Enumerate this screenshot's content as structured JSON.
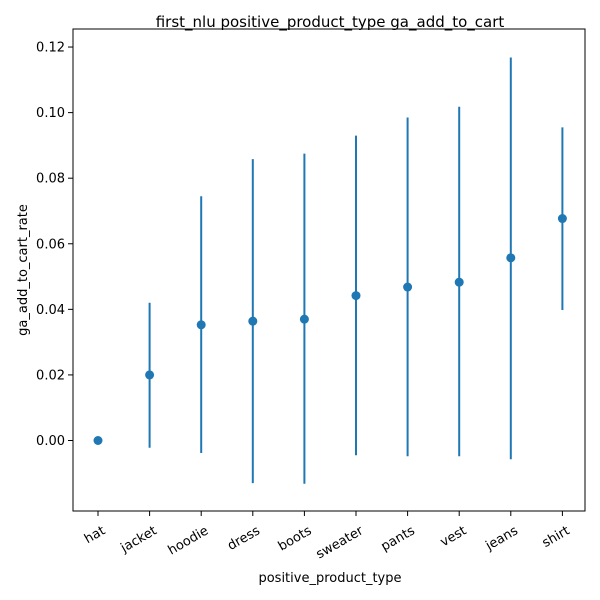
{
  "chart_data": {
    "type": "scatter",
    "title": "first_nlu positive_product_type ga_add_to_cart",
    "xlabel": "positive_product_type",
    "ylabel": "ga_add_to_cart_rate",
    "categories": [
      "hat",
      "jacket",
      "hoodie",
      "dress",
      "boots",
      "sweater",
      "pants",
      "vest",
      "jeans",
      "shirt"
    ],
    "values": [
      0.0,
      0.02,
      0.0353,
      0.0364,
      0.037,
      0.0442,
      0.0468,
      0.0483,
      0.0557,
      0.0677
    ],
    "error_low": [
      0.0,
      -0.0022,
      -0.0038,
      -0.013,
      -0.0132,
      -0.0045,
      -0.0048,
      -0.0048,
      -0.0057,
      0.0398
    ],
    "error_high": [
      0.0,
      0.042,
      0.0745,
      0.0858,
      0.0875,
      0.093,
      0.0985,
      0.1018,
      0.1168,
      0.0955
    ],
    "ylim": [
      -0.0215,
      0.1255
    ],
    "yticks": [
      0.0,
      0.02,
      0.04,
      0.06,
      0.08,
      0.1,
      0.12
    ],
    "ytick_labels": [
      "0.00",
      "0.02",
      "0.04",
      "0.06",
      "0.08",
      "0.10",
      "0.12"
    ],
    "grid": false,
    "color": "#1f77b4"
  }
}
